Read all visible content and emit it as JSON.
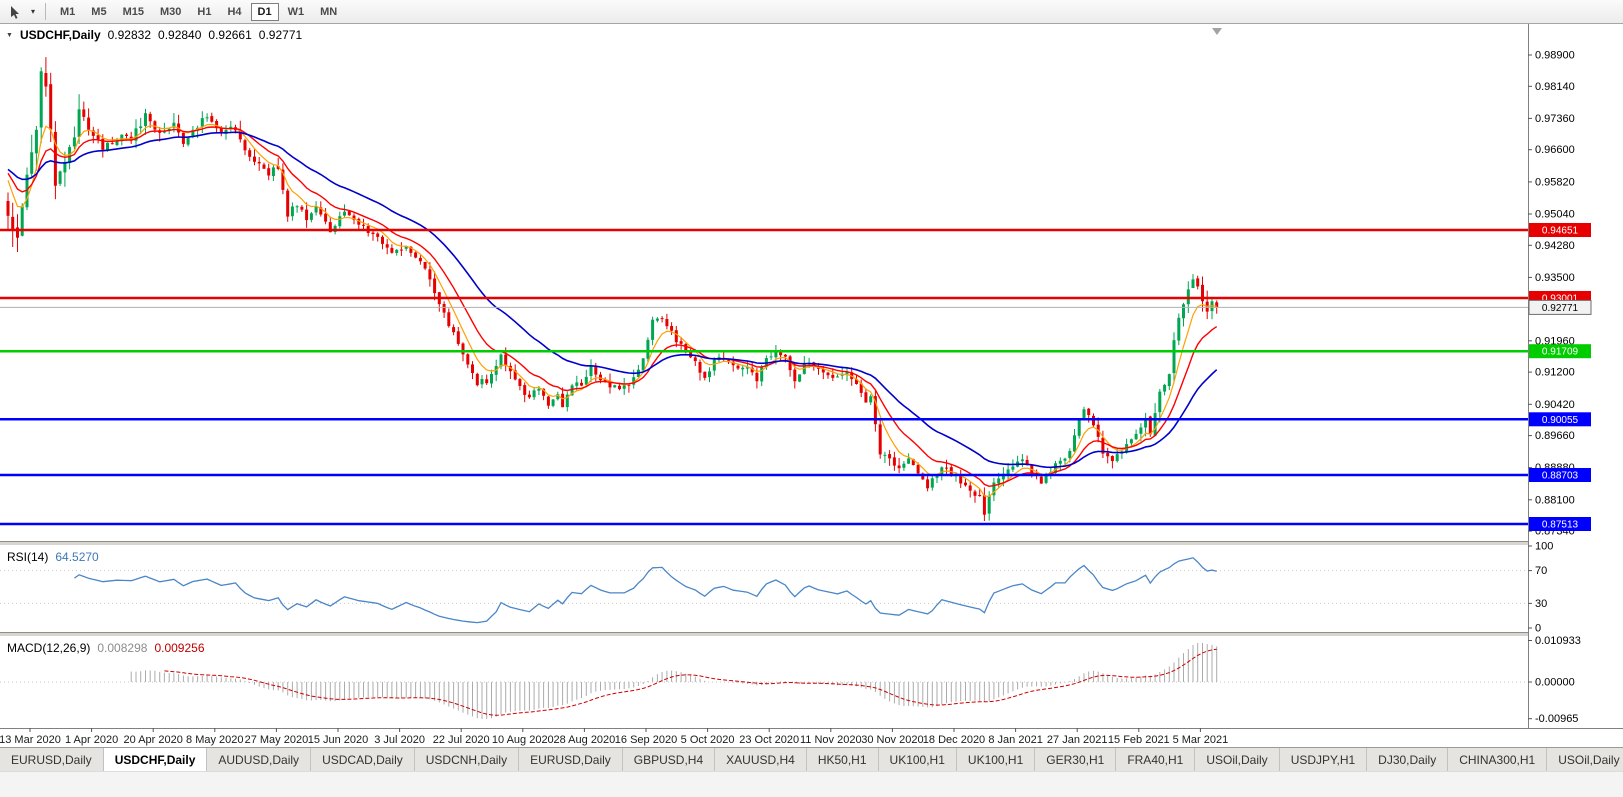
{
  "toolbar": {
    "timeframes": [
      {
        "label": "M1",
        "active": false
      },
      {
        "label": "M5",
        "active": false
      },
      {
        "label": "M15",
        "active": false
      },
      {
        "label": "M30",
        "active": false
      },
      {
        "label": "H1",
        "active": false
      },
      {
        "label": "H4",
        "active": false
      },
      {
        "label": "D1",
        "active": true
      },
      {
        "label": "W1",
        "active": false
      },
      {
        "label": "MN",
        "active": false
      }
    ]
  },
  "chart": {
    "title": "USDCHF,Daily",
    "ohlc": {
      "open": "0.92832",
      "high": "0.92840",
      "low": "0.92661",
      "close": "0.92771"
    },
    "current_price": "0.92771",
    "price_axis_labels": [
      "0.98900",
      "0.98140",
      "0.97360",
      "0.96600",
      "0.95820",
      "0.95040",
      "0.94280",
      "0.93500",
      "0.92740",
      "0.91960",
      "0.91200",
      "0.90420",
      "0.89660",
      "0.88880",
      "0.88100",
      "0.87340"
    ],
    "hlines": [
      {
        "price": 0.94651,
        "label": "0.94651",
        "color": "#e60000"
      },
      {
        "price": 0.93001,
        "label": "0.93001",
        "color": "#e60000"
      },
      {
        "price": 0.91709,
        "label": "0.91709",
        "color": "#00cc00"
      },
      {
        "price": 0.90055,
        "label": "0.90055",
        "color": "#0000ff"
      },
      {
        "price": 0.88703,
        "label": "0.88703",
        "color": "#0000ff"
      },
      {
        "price": 0.87513,
        "label": "0.87513",
        "color": "#0000ff"
      }
    ],
    "date_labels": [
      "13 Mar 2020",
      "1 Apr 2020",
      "20 Apr 2020",
      "8 May 2020",
      "27 May 2020",
      "15 Jun 2020",
      "3 Jul 2020",
      "22 Jul 2020",
      "10 Aug 2020",
      "28 Aug 2020",
      "16 Sep 2020",
      "5 Oct 2020",
      "23 Oct 2020",
      "11 Nov 2020",
      "30 Nov 2020",
      "18 Dec 2020",
      "8 Jan 2021",
      "27 Jan 2021",
      "15 Feb 2021",
      "5 Mar 2021"
    ],
    "bars": 256,
    "colors": {
      "up": "#00a651",
      "down": "#e60000"
    },
    "moving_averages": [
      {
        "period": 6,
        "color": "#ffa000",
        "width": 1.2
      },
      {
        "period": 13,
        "color": "#ff0000",
        "width": 1.4
      },
      {
        "period": 30,
        "color": "#0000cd",
        "width": 1.6
      }
    ],
    "close_path_anchors": [
      [
        0,
        0.95
      ],
      [
        2,
        0.9445
      ],
      [
        4,
        0.959
      ],
      [
        6,
        0.972
      ],
      [
        7,
        0.9855
      ],
      [
        8,
        0.98
      ],
      [
        10,
        0.9585
      ],
      [
        12,
        0.9625
      ],
      [
        14,
        0.968
      ],
      [
        15,
        0.977
      ],
      [
        17,
        0.9715
      ],
      [
        20,
        0.9665
      ],
      [
        23,
        0.969
      ],
      [
        26,
        0.9685
      ],
      [
        29,
        0.9745
      ],
      [
        32,
        0.97
      ],
      [
        35,
        0.9725
      ],
      [
        37,
        0.968
      ],
      [
        39,
        0.9715
      ],
      [
        42,
        0.9735
      ],
      [
        45,
        0.97
      ],
      [
        48,
        0.9715
      ],
      [
        50,
        0.966
      ],
      [
        52,
        0.9625
      ],
      [
        55,
        0.9605
      ],
      [
        57,
        0.9615
      ],
      [
        59,
        0.9505
      ],
      [
        61,
        0.953
      ],
      [
        63,
        0.9495
      ],
      [
        65,
        0.9525
      ],
      [
        68,
        0.9465
      ],
      [
        71,
        0.9505
      ],
      [
        74,
        0.9475
      ],
      [
        78,
        0.9455
      ],
      [
        81,
        0.9405
      ],
      [
        84,
        0.9425
      ],
      [
        87,
        0.9385
      ],
      [
        89,
        0.9345
      ],
      [
        91,
        0.9285
      ],
      [
        93,
        0.9235
      ],
      [
        95,
        0.9185
      ],
      [
        97,
        0.9135
      ],
      [
        99,
        0.9095
      ],
      [
        101,
        0.91
      ],
      [
        103,
        0.913
      ],
      [
        104,
        0.9165
      ],
      [
        106,
        0.9115
      ],
      [
        108,
        0.9085
      ],
      [
        110,
        0.9055
      ],
      [
        112,
        0.9085
      ],
      [
        114,
        0.9035
      ],
      [
        116,
        0.907
      ],
      [
        117,
        0.9035
      ],
      [
        119,
        0.9095
      ],
      [
        121,
        0.9085
      ],
      [
        123,
        0.9135
      ],
      [
        125,
        0.9105
      ],
      [
        127,
        0.9085
      ],
      [
        130,
        0.9085
      ],
      [
        132,
        0.9105
      ],
      [
        134,
        0.9155
      ],
      [
        136,
        0.925
      ],
      [
        138,
        0.9255
      ],
      [
        140,
        0.9215
      ],
      [
        143,
        0.9165
      ],
      [
        145,
        0.9145
      ],
      [
        147,
        0.9105
      ],
      [
        149,
        0.9145
      ],
      [
        151,
        0.9155
      ],
      [
        153,
        0.9135
      ],
      [
        156,
        0.9125
      ],
      [
        158,
        0.9105
      ],
      [
        160,
        0.9155
      ],
      [
        162,
        0.9175
      ],
      [
        164,
        0.9155
      ],
      [
        166,
        0.9095
      ],
      [
        168,
        0.9135
      ],
      [
        169,
        0.9145
      ],
      [
        171,
        0.9125
      ],
      [
        173,
        0.9115
      ],
      [
        175,
        0.9105
      ],
      [
        177,
        0.9115
      ],
      [
        179,
        0.9085
      ],
      [
        181,
        0.9045
      ],
      [
        182,
        0.9055
      ],
      [
        184,
        0.8925
      ],
      [
        186,
        0.8905
      ],
      [
        188,
        0.8885
      ],
      [
        190,
        0.8905
      ],
      [
        192,
        0.8875
      ],
      [
        194,
        0.8845
      ],
      [
        195,
        0.8855
      ],
      [
        197,
        0.8895
      ],
      [
        199,
        0.8875
      ],
      [
        201,
        0.8855
      ],
      [
        203,
        0.8835
      ],
      [
        205,
        0.8815
      ],
      [
        206,
        0.8775
      ],
      [
        208,
        0.8855
      ],
      [
        210,
        0.8875
      ],
      [
        212,
        0.8895
      ],
      [
        214,
        0.8905
      ],
      [
        216,
        0.8875
      ],
      [
        218,
        0.8855
      ],
      [
        220,
        0.8885
      ],
      [
        221,
        0.8905
      ],
      [
        223,
        0.8905
      ],
      [
        225,
        0.8965
      ],
      [
        227,
        0.9035
      ],
      [
        229,
        0.8995
      ],
      [
        231,
        0.8925
      ],
      [
        233,
        0.8905
      ],
      [
        234,
        0.8915
      ],
      [
        236,
        0.8945
      ],
      [
        238,
        0.8965
      ],
      [
        240,
        0.9005
      ],
      [
        241,
        0.8965
      ],
      [
        243,
        0.9065
      ],
      [
        245,
        0.9125
      ],
      [
        247,
        0.9255
      ],
      [
        249,
        0.9315
      ],
      [
        250,
        0.9355
      ],
      [
        251,
        0.933
      ],
      [
        252,
        0.9295
      ],
      [
        253,
        0.927
      ],
      [
        254,
        0.9285
      ],
      [
        255,
        0.92771
      ]
    ]
  },
  "rsi": {
    "name": "RSI(14)",
    "value": "64.5270",
    "axis_labels": [
      "100",
      "70",
      "30",
      "0"
    ],
    "levels": [
      70,
      30
    ],
    "color": "#4a86c8"
  },
  "macd": {
    "name": "MACD(12,26,9)",
    "main_value": "0.008298",
    "signal_value": "0.009256",
    "axis_labels": [
      "0.010933",
      "0.00000",
      "-0.00965"
    ],
    "hist_color": "#ababab",
    "signal_color": "#d00000"
  },
  "tabs": {
    "active_index": 1,
    "items": [
      "EURUSD,Daily",
      "USDCHF,Daily",
      "AUDUSD,Daily",
      "USDCAD,Daily",
      "USDCNH,Daily",
      "EURUSD,Daily",
      "GBPUSD,H4",
      "XAUUSD,H4",
      "HK50,H1",
      "UK100,H1",
      "UK100,H1",
      "GER30,H1",
      "FRA40,H1",
      "USOil,Daily",
      "USDJPY,H1",
      "DJ30,Daily",
      "CHINA300,H1",
      "USOil,Daily"
    ]
  }
}
